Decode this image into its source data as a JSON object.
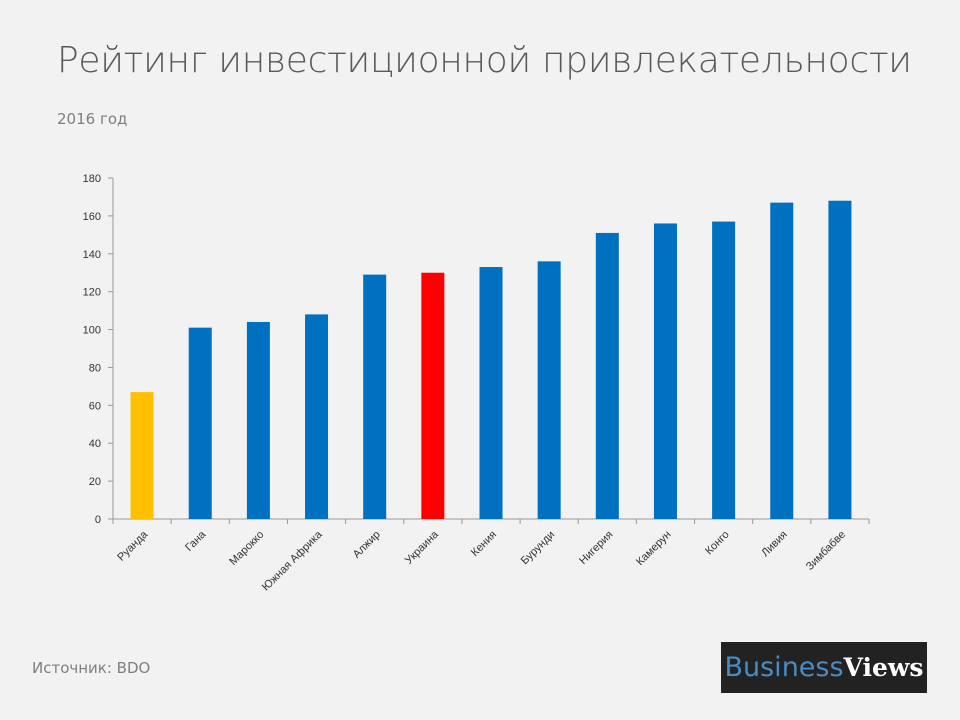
{
  "chart_data": {
    "type": "bar",
    "title": "Рейтинг инвестиционной привлекательности",
    "subtitle": "2016 год",
    "categories": [
      "Руанда",
      "Гана",
      "Марокко",
      "Южная Африка",
      "Алжир",
      "Украина",
      "Кения",
      "Бурунди",
      "Нигерия",
      "Камерун",
      "Конго",
      "Ливия",
      "Зимбабве"
    ],
    "values": [
      67,
      101,
      104,
      108,
      129,
      130,
      133,
      136,
      151,
      156,
      157,
      167,
      168
    ],
    "colors": [
      "#ffc000",
      "#0070c0",
      "#0070c0",
      "#0070c0",
      "#0070c0",
      "#ff0000",
      "#0070c0",
      "#0070c0",
      "#0070c0",
      "#0070c0",
      "#0070c0",
      "#0070c0",
      "#0070c0"
    ],
    "ylim": [
      0,
      180
    ],
    "yticks": [
      0,
      20,
      40,
      60,
      80,
      100,
      120,
      140,
      160,
      180
    ],
    "xlabel": "",
    "ylabel": "",
    "grid": false,
    "legend": "none"
  },
  "source": "Источник: BDO",
  "logo": {
    "part1": "Business",
    "part2": "Views"
  }
}
